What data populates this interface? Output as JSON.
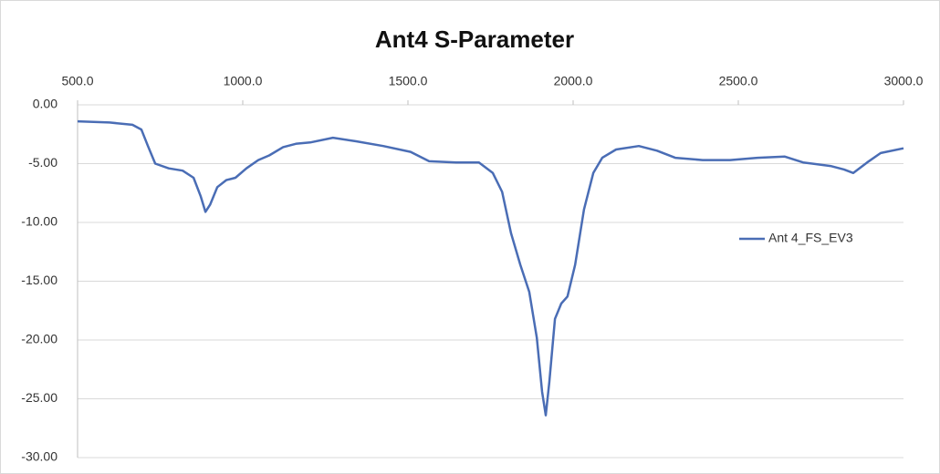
{
  "chart_data": {
    "type": "line",
    "title": "Ant4 S-Parameter",
    "x": [
      500,
      597,
      666,
      693,
      713,
      735,
      776,
      818,
      851,
      873,
      887,
      901,
      923,
      950,
      978,
      1011,
      1047,
      1080,
      1122,
      1163,
      1204,
      1273,
      1343,
      1425,
      1508,
      1564,
      1646,
      1715,
      1757,
      1785,
      1812,
      1840,
      1867,
      1890,
      1906,
      1917,
      1928,
      1945,
      1964,
      1983,
      2006,
      2033,
      2061,
      2088,
      2130,
      2199,
      2254,
      2309,
      2392,
      2475,
      2558,
      2641,
      2696,
      2779,
      2820,
      2848,
      2890,
      2931,
      3000
    ],
    "series": [
      {
        "name": "Ant 4_FS_EV3",
        "color": "#4a6db5",
        "values": [
          -1.4,
          -1.5,
          -1.7,
          -2.1,
          -3.5,
          -5.0,
          -5.4,
          -5.6,
          -6.2,
          -7.8,
          -9.1,
          -8.5,
          -7.0,
          -6.4,
          -6.2,
          -5.4,
          -4.7,
          -4.3,
          -3.6,
          -3.3,
          -3.2,
          -2.8,
          -3.1,
          -3.5,
          -4.0,
          -4.8,
          -4.9,
          -4.9,
          -5.8,
          -7.4,
          -10.9,
          -13.6,
          -15.9,
          -19.8,
          -24.4,
          -26.4,
          -23.6,
          -18.2,
          -16.9,
          -16.3,
          -13.6,
          -8.9,
          -5.8,
          -4.5,
          -3.8,
          -3.5,
          -3.9,
          -4.5,
          -4.7,
          -4.7,
          -4.5,
          -4.4,
          -4.9,
          -5.2,
          -5.5,
          -5.8,
          -4.9,
          -4.1,
          -3.7
        ]
      }
    ],
    "xlim": [
      500,
      3000
    ],
    "xticks": [
      {
        "value": 500,
        "label": "500.0"
      },
      {
        "value": 1000,
        "label": "1000.0"
      },
      {
        "value": 1500,
        "label": "1500.0"
      },
      {
        "value": 2000,
        "label": "2000.0"
      },
      {
        "value": 2500,
        "label": "2500.0"
      },
      {
        "value": 3000,
        "label": "3000.0"
      }
    ],
    "ylim": [
      -30,
      0
    ],
    "yticks": [
      {
        "value": 0,
        "label": "0.00"
      },
      {
        "value": -5,
        "label": "-5.00"
      },
      {
        "value": -10,
        "label": "-10.00"
      },
      {
        "value": -15,
        "label": "-15.00"
      },
      {
        "value": -20,
        "label": "-20.00"
      },
      {
        "value": -25,
        "label": "-25.00"
      },
      {
        "value": -30,
        "label": "-30.00"
      }
    ],
    "grid": true,
    "legend": "right"
  }
}
